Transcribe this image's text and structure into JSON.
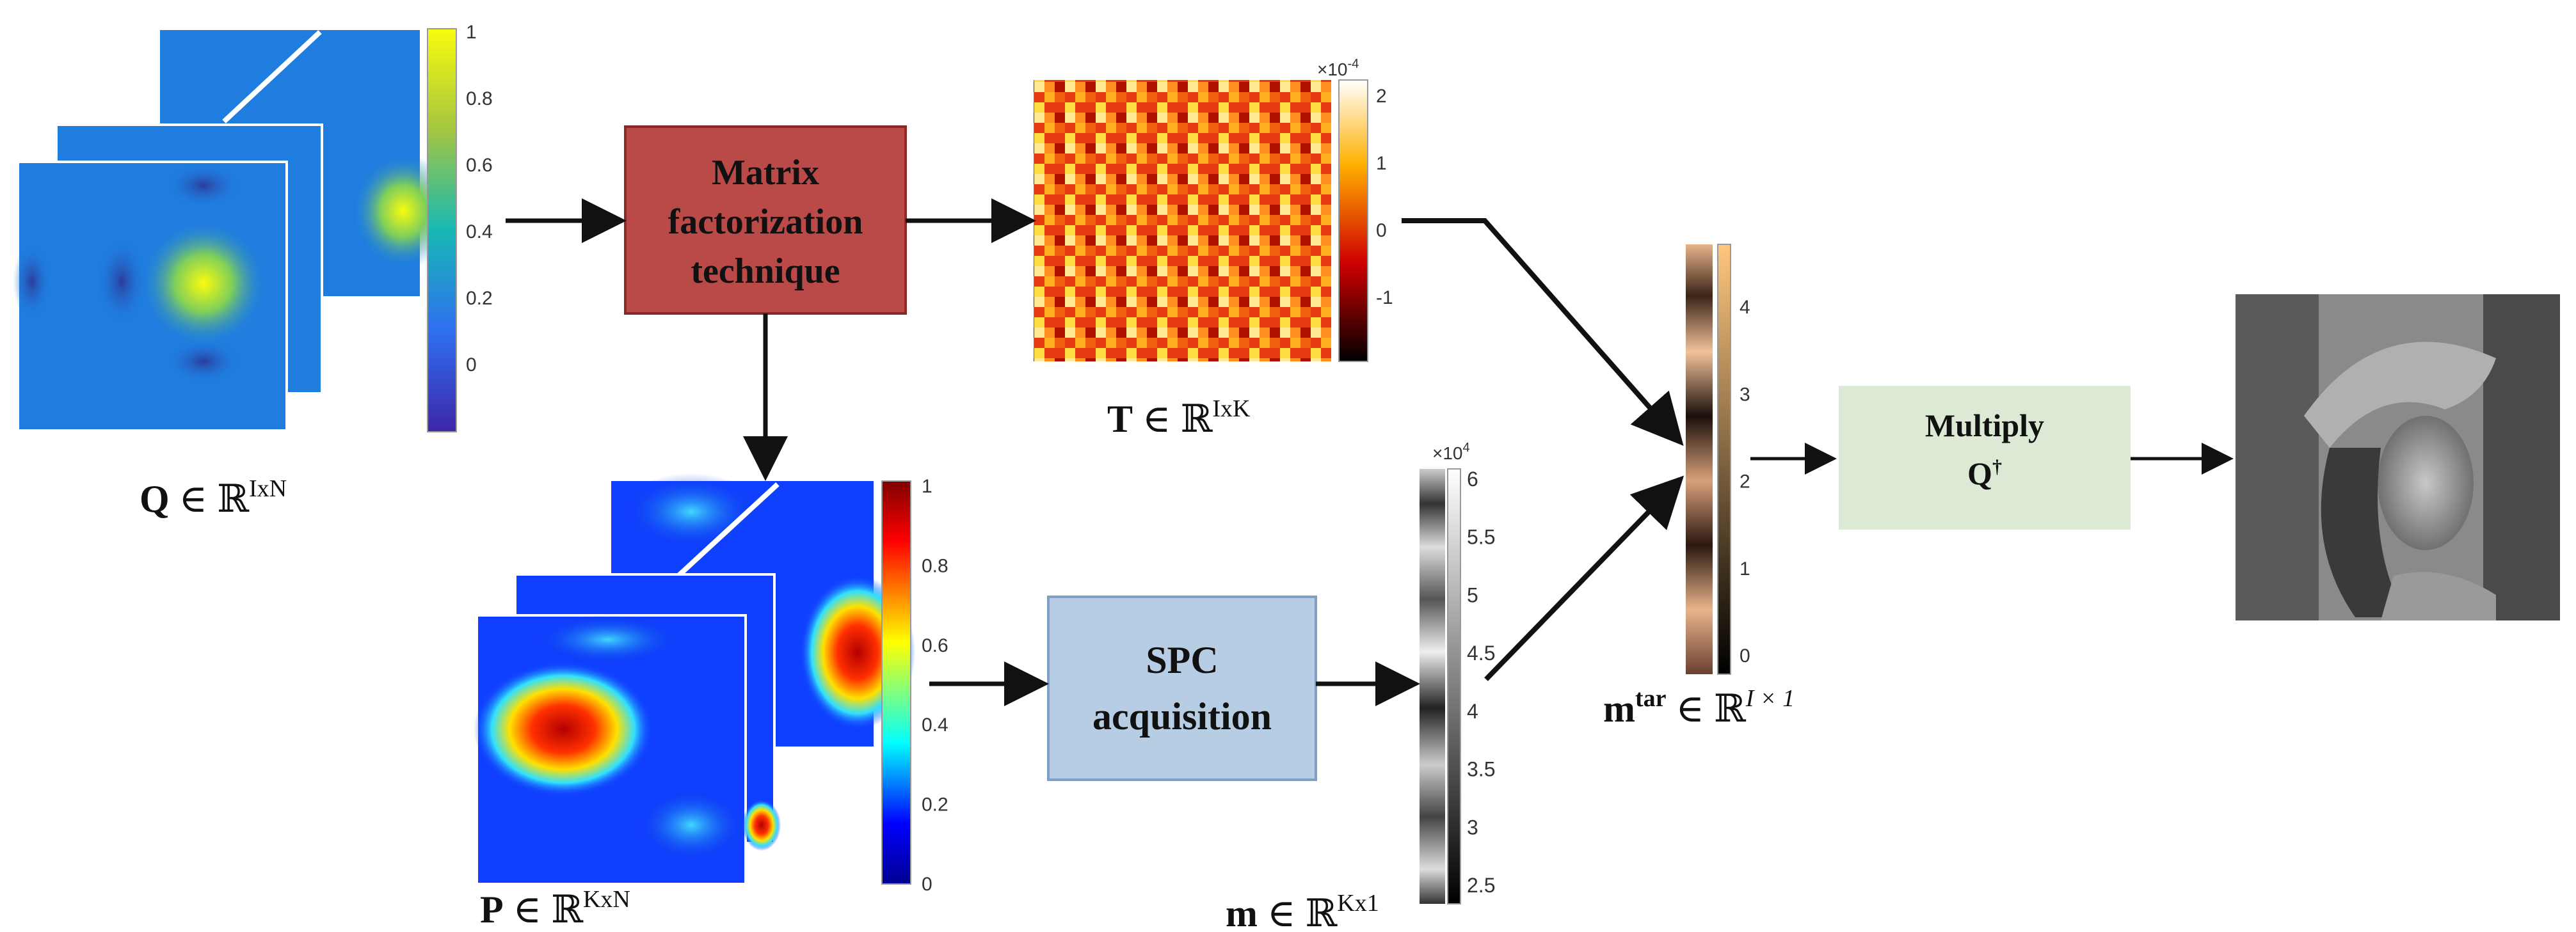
{
  "boxes": {
    "matrix_factorization": {
      "line1": "Matrix",
      "line2": "factorization",
      "line3": "technique",
      "fill": "#b94a48"
    },
    "spc_acquisition": {
      "line1": "SPC",
      "line2": "acquisition",
      "fill": "#b7cde4"
    },
    "multiply": {
      "line1": "Multiply",
      "line2": "Q",
      "line2_sup": "†",
      "fill": "#dbe9d5"
    }
  },
  "labels": {
    "Q": {
      "sym": "Q",
      "rel": " ∈ ℝ",
      "sup": "IxN"
    },
    "T": {
      "sym": "T",
      "rel": " ∈ ℝ",
      "sup": "IxK"
    },
    "P": {
      "sym": "P",
      "rel": " ∈ ℝ",
      "sup": "KxN"
    },
    "m": {
      "sym": "m",
      "rel": " ∈ ℝ",
      "sup": "Kx1"
    },
    "mtar": {
      "sym": "m",
      "symsup": "tar",
      "rel": " ∈ ℝ",
      "sup": "I × 1"
    }
  },
  "colorbars": {
    "Q": {
      "ticks": [
        "1",
        "0.8",
        "0.6",
        "0.4",
        "0.2",
        "0"
      ]
    },
    "T": {
      "exponent": "×10",
      "exponent_power": "-4",
      "ticks": [
        "2",
        "1",
        "0",
        "-1"
      ]
    },
    "P": {
      "ticks": [
        "1",
        "0.8",
        "0.6",
        "0.4",
        "0.2",
        "0"
      ]
    },
    "m": {
      "exponent": "×10",
      "exponent_power": "4",
      "ticks": [
        "6",
        "5.5",
        "5",
        "4.5",
        "4",
        "3.5",
        "3",
        "2.5"
      ]
    },
    "mtar": {
      "ticks": [
        "4",
        "3",
        "2",
        "1",
        "0"
      ]
    }
  },
  "colors": {
    "arrow": "#111111",
    "parula_low": "#3e26a8",
    "parula_mid": "#17b9b4",
    "parula_high": "#f9fb0e"
  }
}
